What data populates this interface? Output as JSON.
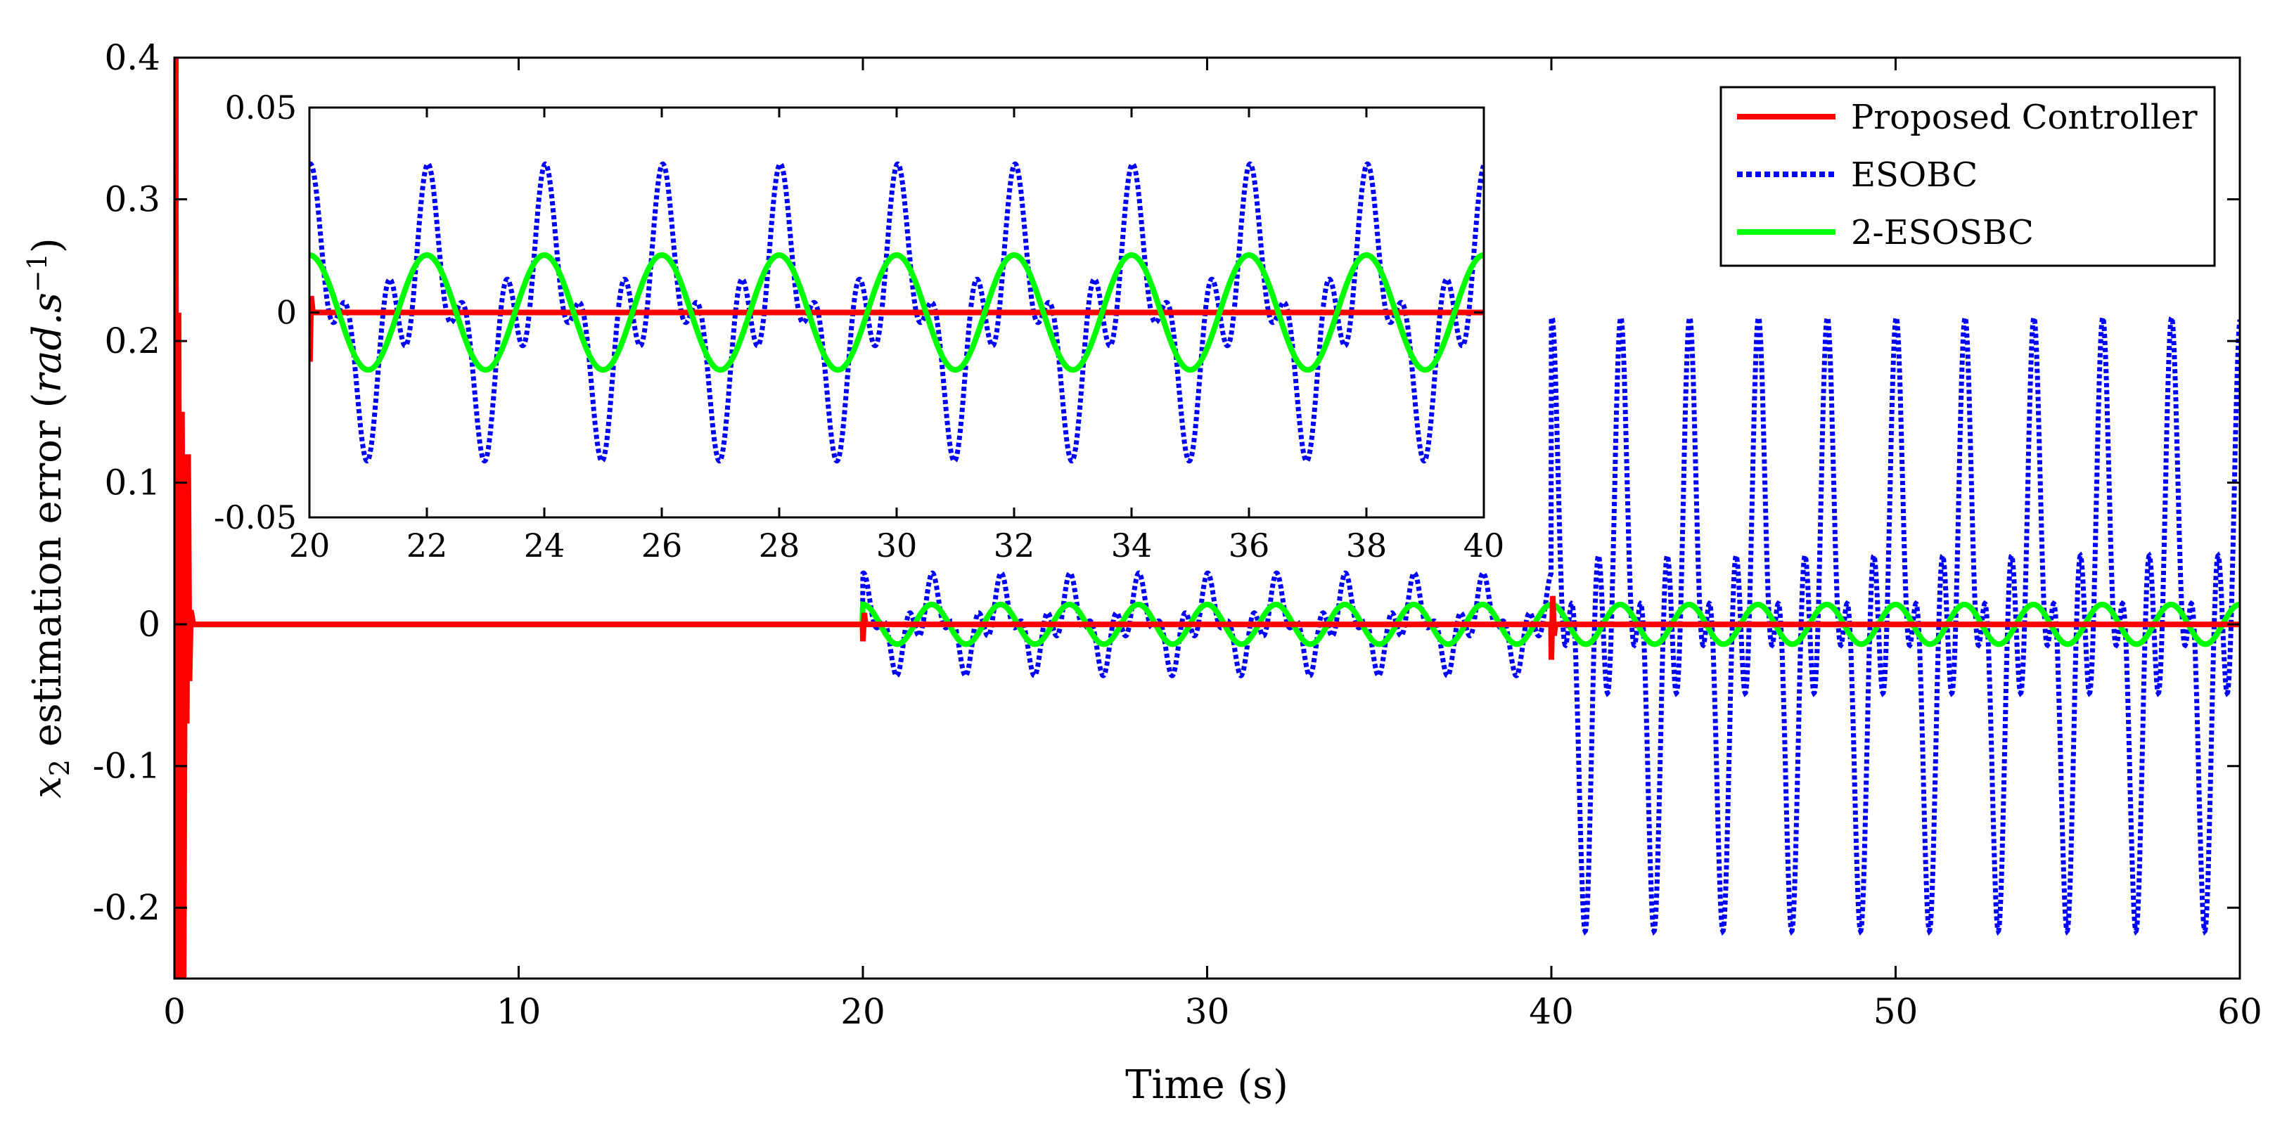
{
  "chart_data": [
    {
      "name": "main",
      "type": "line",
      "xlabel": "Time (s)",
      "ylabel_parts": {
        "var": "x",
        "sub": "2",
        "mid": " estimation error (",
        "unit": "rad.s",
        "sup": "−1",
        "end": ")"
      },
      "xlim": [
        0,
        60
      ],
      "ylim": [
        -0.25,
        0.4
      ],
      "xticks": [
        0,
        10,
        20,
        30,
        40,
        50,
        60
      ],
      "xtick_labels": [
        "0",
        "10",
        "20",
        "30",
        "40",
        "50",
        "60"
      ],
      "yticks": [
        -0.2,
        -0.1,
        0,
        0.1,
        0.2,
        0.3,
        0.4
      ],
      "ytick_labels": [
        "-0.2",
        "-0.1",
        "0",
        "0.1",
        "0.2",
        "0.3",
        "0.4"
      ],
      "grid": false,
      "legend": {
        "position": "top-right",
        "entries": [
          {
            "label": "Proposed Controller",
            "color": "#ff0000",
            "style": "solid"
          },
          {
            "label": "ESOBC",
            "color": "#0000ff",
            "style": "dotted"
          },
          {
            "label": "2-ESOSBC",
            "color": "#00ff00",
            "style": "solid"
          }
        ]
      },
      "series": [
        {
          "name": "Proposed Controller",
          "color": "#ff0000",
          "style": "solid",
          "points": [
            [
              0,
              0
            ],
            [
              0.03,
              0.4
            ],
            [
              0.07,
              -0.25
            ],
            [
              0.12,
              0.22
            ],
            [
              0.17,
              -0.25
            ],
            [
              0.22,
              0.15
            ],
            [
              0.27,
              -0.25
            ],
            [
              0.32,
              0.12
            ],
            [
              0.36,
              -0.07
            ],
            [
              0.4,
              0.12
            ],
            [
              0.44,
              -0.04
            ],
            [
              0.48,
              0.01
            ],
            [
              0.55,
              0
            ],
            [
              19.99,
              0
            ],
            [
              20,
              -0.012
            ],
            [
              20.04,
              0.008
            ],
            [
              20.08,
              0
            ],
            [
              39.99,
              0
            ],
            [
              40,
              -0.025
            ],
            [
              40.04,
              0.02
            ],
            [
              40.08,
              -0.008
            ],
            [
              40.12,
              0
            ],
            [
              60,
              0
            ]
          ]
        },
        {
          "name": "ESOBC",
          "color": "#0000ff",
          "style": "dotted",
          "segments": [
            {
              "t0": 0,
              "t1": 0.5,
              "amp": 0,
              "burst": true
            },
            {
              "t0": 0.5,
              "t1": 20,
              "amp": 0
            },
            {
              "t0": 20,
              "t1": 40,
              "amp": 0.036
            },
            {
              "t0": 40,
              "t1": 60,
              "amp": 0.215
            }
          ],
          "period": 2
        },
        {
          "name": "2-ESOSBC",
          "color": "#00ff00",
          "style": "solid",
          "points": [
            [
              0,
              0
            ],
            [
              0.04,
              -0.25
            ],
            [
              0.08,
              0.0
            ],
            [
              0.2,
              0
            ],
            [
              19.98,
              0
            ],
            [
              20,
              0.014
            ],
            [
              60,
              0.014
            ]
          ],
          "sine": {
            "t0": 20,
            "t1": 60,
            "amp": 0.014,
            "period": 2
          }
        }
      ]
    },
    {
      "name": "inset",
      "type": "line",
      "xlim": [
        20,
        40
      ],
      "ylim": [
        -0.05,
        0.05
      ],
      "xticks": [
        20,
        22,
        24,
        26,
        28,
        30,
        32,
        34,
        36,
        38,
        40
      ],
      "xtick_labels": [
        "20",
        "22",
        "24",
        "26",
        "28",
        "30",
        "32",
        "34",
        "36",
        "38",
        "40"
      ],
      "yticks": [
        -0.05,
        0,
        0.05
      ],
      "ytick_labels": [
        "-0.05",
        "0",
        "0.05"
      ],
      "grid": false,
      "series": [
        {
          "name": "Proposed Controller",
          "color": "#ff0000",
          "style": "solid"
        },
        {
          "name": "ESOBC",
          "color": "#0000ff",
          "style": "dotted",
          "amp": 0.036,
          "period": 2
        },
        {
          "name": "2-ESOSBC",
          "color": "#00ff00",
          "style": "solid",
          "amp": 0.014,
          "period": 2
        }
      ]
    }
  ]
}
